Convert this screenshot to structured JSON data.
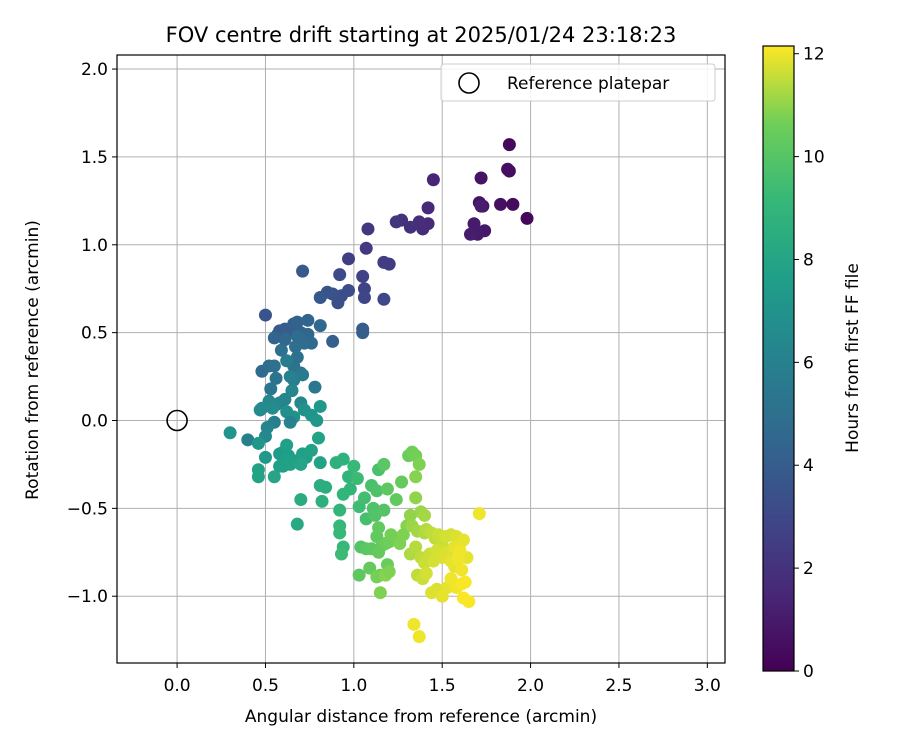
{
  "chart_data": {
    "type": "scatter",
    "title": "FOV centre drift starting at 2025/01/24 23:18:23",
    "xlabel": "Angular distance from reference (arcmin)",
    "ylabel": "Rotation from reference (arcmin)",
    "xlim": [
      -0.34,
      3.1
    ],
    "ylim": [
      -1.38,
      2.08
    ],
    "xticks": [
      0.0,
      0.5,
      1.0,
      1.5,
      2.0,
      2.5,
      3.0
    ],
    "xtick_labels": [
      "0.0",
      "0.5",
      "1.0",
      "1.5",
      "2.0",
      "2.5",
      "3.0"
    ],
    "yticks": [
      -1.0,
      -0.5,
      0.0,
      0.5,
      1.0,
      1.5,
      2.0
    ],
    "ytick_labels": [
      "−1.0",
      "−0.5",
      "0.0",
      "0.5",
      "1.0",
      "1.5",
      "2.0"
    ],
    "grid": true,
    "legend": {
      "location": "upper right",
      "entries": [
        "Reference platepar"
      ]
    },
    "reference": {
      "x": 0.0,
      "y": 0.0
    },
    "colorbar": {
      "label": "Hours from first FF file",
      "range": [
        0,
        12.15
      ],
      "ticks": [
        0,
        2,
        4,
        6,
        8,
        10,
        12
      ],
      "tick_labels": [
        "0",
        "2",
        "4",
        "6",
        "8",
        "10",
        "12"
      ],
      "colormap": "viridis"
    },
    "points": [
      [
        1.88,
        1.57,
        0.3
      ],
      [
        1.98,
        1.15,
        0.3
      ],
      [
        1.9,
        1.23,
        0.4
      ],
      [
        1.88,
        1.42,
        0.5
      ],
      [
        1.87,
        1.43,
        0.5
      ],
      [
        1.83,
        1.23,
        0.6
      ],
      [
        1.72,
        1.38,
        0.7
      ],
      [
        1.71,
        1.24,
        0.7
      ],
      [
        1.73,
        1.22,
        0.8
      ],
      [
        1.74,
        1.08,
        0.9
      ],
      [
        1.7,
        1.06,
        1.0
      ],
      [
        1.68,
        1.12,
        1.0
      ],
      [
        1.66,
        1.06,
        1.1
      ],
      [
        1.72,
        1.22,
        1.1
      ],
      [
        1.45,
        1.37,
        1.4
      ],
      [
        1.42,
        1.21,
        1.5
      ],
      [
        1.42,
        1.12,
        1.6
      ],
      [
        1.39,
        1.09,
        1.7
      ],
      [
        1.37,
        1.13,
        1.8
      ],
      [
        1.32,
        1.1,
        1.9
      ],
      [
        1.27,
        1.14,
        2.0
      ],
      [
        1.24,
        1.13,
        2.1
      ],
      [
        1.08,
        1.09,
        2.2
      ],
      [
        1.07,
        0.98,
        2.3
      ],
      [
        1.2,
        0.89,
        2.4
      ],
      [
        1.17,
        0.9,
        2.5
      ],
      [
        0.97,
        0.92,
        2.6
      ],
      [
        1.05,
        0.82,
        2.7
      ],
      [
        1.06,
        0.75,
        2.8
      ],
      [
        1.06,
        0.7,
        2.9
      ],
      [
        1.17,
        0.69,
        3.0
      ],
      [
        0.92,
        0.83,
        3.1
      ],
      [
        0.97,
        0.74,
        3.2
      ],
      [
        0.93,
        0.71,
        3.3
      ],
      [
        0.91,
        0.67,
        3.4
      ],
      [
        0.88,
        0.72,
        3.5
      ],
      [
        0.85,
        0.73,
        3.6
      ],
      [
        0.81,
        0.7,
        3.7
      ],
      [
        0.71,
        0.85,
        3.8
      ],
      [
        1.05,
        0.52,
        3.9
      ],
      [
        1.05,
        0.5,
        4.0
      ],
      [
        0.88,
        0.45,
        4.1
      ],
      [
        0.5,
        0.6,
        3.6
      ],
      [
        0.57,
        0.49,
        3.7
      ],
      [
        0.58,
        0.51,
        3.8
      ],
      [
        0.63,
        0.5,
        3.9
      ],
      [
        0.61,
        0.52,
        4.0
      ],
      [
        0.66,
        0.55,
        4.1
      ],
      [
        0.7,
        0.5,
        4.2
      ],
      [
        0.68,
        0.56,
        4.3
      ],
      [
        0.74,
        0.57,
        4.4
      ],
      [
        0.74,
        0.49,
        4.5
      ],
      [
        0.81,
        0.54,
        4.6
      ],
      [
        0.76,
        0.44,
        4.7
      ],
      [
        0.72,
        0.44,
        4.8
      ],
      [
        0.68,
        0.48,
        4.8
      ],
      [
        0.67,
        0.42,
        4.9
      ],
      [
        0.59,
        0.4,
        5.0
      ],
      [
        0.61,
        0.46,
        4.6
      ],
      [
        0.55,
        0.47,
        4.4
      ],
      [
        0.48,
        0.28,
        4.7
      ],
      [
        0.52,
        0.31,
        4.8
      ],
      [
        0.55,
        0.31,
        5.0
      ],
      [
        0.56,
        0.24,
        5.2
      ],
      [
        0.53,
        0.18,
        5.3
      ],
      [
        0.66,
        0.31,
        5.2
      ],
      [
        0.68,
        0.36,
        5.1
      ],
      [
        0.7,
        0.27,
        5.4
      ],
      [
        0.71,
        0.26,
        5.6
      ],
      [
        0.66,
        0.23,
        5.8
      ],
      [
        0.62,
        0.34,
        5.7
      ],
      [
        0.64,
        0.25,
        6.0
      ],
      [
        0.78,
        0.19,
        5.5
      ],
      [
        0.58,
        0.1,
        6.0
      ],
      [
        0.61,
        0.12,
        6.2
      ],
      [
        0.56,
        0.09,
        6.3
      ],
      [
        0.52,
        0.11,
        6.4
      ],
      [
        0.48,
        0.07,
        6.5
      ],
      [
        0.47,
        0.06,
        6.6
      ],
      [
        0.54,
        0.07,
        6.6
      ],
      [
        0.65,
        0.17,
        6.3
      ],
      [
        0.7,
        0.1,
        6.4
      ],
      [
        0.62,
        0.05,
        6.8
      ],
      [
        0.66,
        0.02,
        6.9
      ],
      [
        0.72,
        0.06,
        7.0
      ],
      [
        0.76,
        0.03,
        7.1
      ],
      [
        0.81,
        0.08,
        7.3
      ],
      [
        0.79,
        0.0,
        7.2
      ],
      [
        0.64,
        -0.01,
        6.1
      ],
      [
        0.55,
        -0.01,
        5.9
      ],
      [
        0.51,
        -0.04,
        6.2
      ],
      [
        0.5,
        -0.09,
        6.4
      ],
      [
        0.4,
        -0.11,
        5.9
      ],
      [
        0.3,
        -0.07,
        7.1
      ],
      [
        0.46,
        -0.13,
        7.2
      ],
      [
        0.5,
        -0.21,
        7.3
      ],
      [
        0.58,
        -0.19,
        7.4
      ],
      [
        0.6,
        -0.18,
        7.5
      ],
      [
        0.63,
        -0.2,
        7.6
      ],
      [
        0.67,
        -0.23,
        7.6
      ],
      [
        0.71,
        -0.19,
        7.7
      ],
      [
        0.73,
        -0.21,
        7.7
      ],
      [
        0.76,
        -0.17,
        7.8
      ],
      [
        0.8,
        -0.1,
        7.9
      ],
      [
        0.81,
        -0.24,
        7.9
      ],
      [
        0.6,
        -0.26,
        7.6
      ],
      [
        0.62,
        -0.23,
        7.7
      ],
      [
        0.64,
        -0.25,
        7.8
      ],
      [
        0.7,
        -0.25,
        8.0
      ],
      [
        0.58,
        -0.26,
        7.7
      ],
      [
        0.46,
        -0.28,
        7.8
      ],
      [
        0.46,
        -0.32,
        7.9
      ],
      [
        0.55,
        -0.32,
        8.0
      ],
      [
        0.62,
        -0.14,
        7.7
      ],
      [
        0.7,
        -0.45,
        8.4
      ],
      [
        0.68,
        -0.59,
        8.2
      ],
      [
        0.81,
        -0.37,
        8.5
      ],
      [
        0.82,
        -0.46,
        8.6
      ],
      [
        0.84,
        -0.38,
        8.5
      ],
      [
        0.9,
        -0.24,
        8.7
      ],
      [
        0.94,
        -0.22,
        8.8
      ],
      [
        0.97,
        -0.32,
        8.9
      ],
      [
        0.94,
        -0.42,
        8.9
      ],
      [
        0.98,
        -0.39,
        9.0
      ],
      [
        0.92,
        -0.51,
        9.0
      ],
      [
        0.92,
        -0.6,
        9.1
      ],
      [
        0.92,
        -0.64,
        9.2
      ],
      [
        0.94,
        -0.72,
        9.2
      ],
      [
        0.93,
        -0.76,
        9.3
      ],
      [
        1.0,
        -0.26,
        9.2
      ],
      [
        1.02,
        -0.33,
        9.3
      ],
      [
        1.03,
        -0.49,
        9.4
      ],
      [
        1.06,
        -0.44,
        9.5
      ],
      [
        1.07,
        -0.56,
        9.6
      ],
      [
        1.1,
        -0.37,
        9.7
      ],
      [
        1.14,
        -0.28,
        9.7
      ],
      [
        1.13,
        -0.4,
        9.8
      ],
      [
        1.11,
        -0.5,
        9.8
      ],
      [
        1.12,
        -0.54,
        9.9
      ],
      [
        1.17,
        -0.51,
        10.0
      ],
      [
        1.04,
        -0.72,
        9.9
      ],
      [
        1.07,
        -0.73,
        10.1
      ],
      [
        1.1,
        -0.73,
        10.2
      ],
      [
        1.13,
        -0.66,
        10.3
      ],
      [
        1.14,
        -0.61,
        10.3
      ],
      [
        1.14,
        -0.75,
        10.4
      ],
      [
        1.16,
        -0.71,
        10.4
      ],
      [
        1.18,
        -0.7,
        10.5
      ],
      [
        1.19,
        -0.82,
        10.5
      ],
      [
        1.2,
        -0.69,
        10.6
      ],
      [
        1.21,
        -0.65,
        10.7
      ],
      [
        1.24,
        -0.67,
        10.7
      ],
      [
        1.26,
        -0.7,
        10.8
      ],
      [
        1.3,
        -0.6,
        10.9
      ],
      [
        1.28,
        -0.65,
        10.8
      ],
      [
        1.03,
        -0.88,
        10.2
      ],
      [
        1.09,
        -0.84,
        10.4
      ],
      [
        1.15,
        -0.88,
        10.6
      ],
      [
        1.13,
        -0.89,
        10.7
      ],
      [
        1.18,
        -0.88,
        10.9
      ],
      [
        1.2,
        -0.86,
        10.8
      ],
      [
        1.15,
        -0.98,
        10.8
      ],
      [
        1.17,
        -0.25,
        10.1
      ],
      [
        1.19,
        -0.39,
        10.2
      ],
      [
        1.24,
        -0.45,
        10.3
      ],
      [
        1.27,
        -0.35,
        10.4
      ],
      [
        1.31,
        -0.2,
        10.5
      ],
      [
        1.33,
        -0.18,
        10.6
      ],
      [
        1.35,
        -0.2,
        10.7
      ],
      [
        1.37,
        -0.25,
        10.8
      ],
      [
        1.35,
        -0.32,
        10.9
      ],
      [
        1.35,
        -0.44,
        11.0
      ],
      [
        1.38,
        -0.52,
        11.1
      ],
      [
        1.4,
        -0.54,
        11.2
      ],
      [
        1.32,
        -0.54,
        11.0
      ],
      [
        1.33,
        -0.6,
        11.1
      ],
      [
        1.36,
        -0.63,
        11.2
      ],
      [
        1.4,
        -0.64,
        11.3
      ],
      [
        1.41,
        -0.62,
        11.4
      ],
      [
        1.44,
        -0.64,
        11.5
      ],
      [
        1.46,
        -0.67,
        11.5
      ],
      [
        1.48,
        -0.65,
        11.6
      ],
      [
        1.5,
        -0.71,
        11.6
      ],
      [
        1.52,
        -0.66,
        11.7
      ],
      [
        1.55,
        -0.65,
        11.7
      ],
      [
        1.58,
        -0.66,
        11.8
      ],
      [
        1.6,
        -0.7,
        11.8
      ],
      [
        1.62,
        -0.68,
        11.9
      ],
      [
        1.64,
        -0.78,
        11.9
      ],
      [
        1.71,
        -0.53,
        12.0
      ],
      [
        1.32,
        -0.76,
        11.3
      ],
      [
        1.35,
        -0.72,
        11.4
      ],
      [
        1.38,
        -0.78,
        11.5
      ],
      [
        1.4,
        -0.81,
        11.6
      ],
      [
        1.43,
        -0.76,
        11.6
      ],
      [
        1.45,
        -0.8,
        11.7
      ],
      [
        1.47,
        -0.74,
        11.7
      ],
      [
        1.5,
        -0.78,
        11.8
      ],
      [
        1.53,
        -0.75,
        11.8
      ],
      [
        1.55,
        -0.8,
        11.9
      ],
      [
        1.57,
        -0.83,
        11.9
      ],
      [
        1.59,
        -0.79,
        12.0
      ],
      [
        1.61,
        -0.85,
        12.0
      ],
      [
        1.36,
        -0.88,
        11.5
      ],
      [
        1.39,
        -0.9,
        11.6
      ],
      [
        1.41,
        -0.87,
        11.7
      ],
      [
        1.44,
        -0.98,
        11.8
      ],
      [
        1.47,
        -0.96,
        11.8
      ],
      [
        1.5,
        -1.0,
        11.9
      ],
      [
        1.53,
        -0.95,
        11.9
      ],
      [
        1.55,
        -0.9,
        12.0
      ],
      [
        1.58,
        -0.95,
        12.0
      ],
      [
        1.61,
        -0.93,
        12.1
      ],
      [
        1.63,
        -0.92,
        12.1
      ],
      [
        1.62,
        -1.01,
        12.1
      ],
      [
        1.65,
        -1.03,
        12.1
      ],
      [
        1.34,
        -1.16,
        12.0
      ],
      [
        1.37,
        -1.23,
        12.0
      ],
      [
        1.57,
        -0.72,
        11.9
      ],
      [
        1.6,
        -0.74,
        12.0
      ]
    ]
  }
}
